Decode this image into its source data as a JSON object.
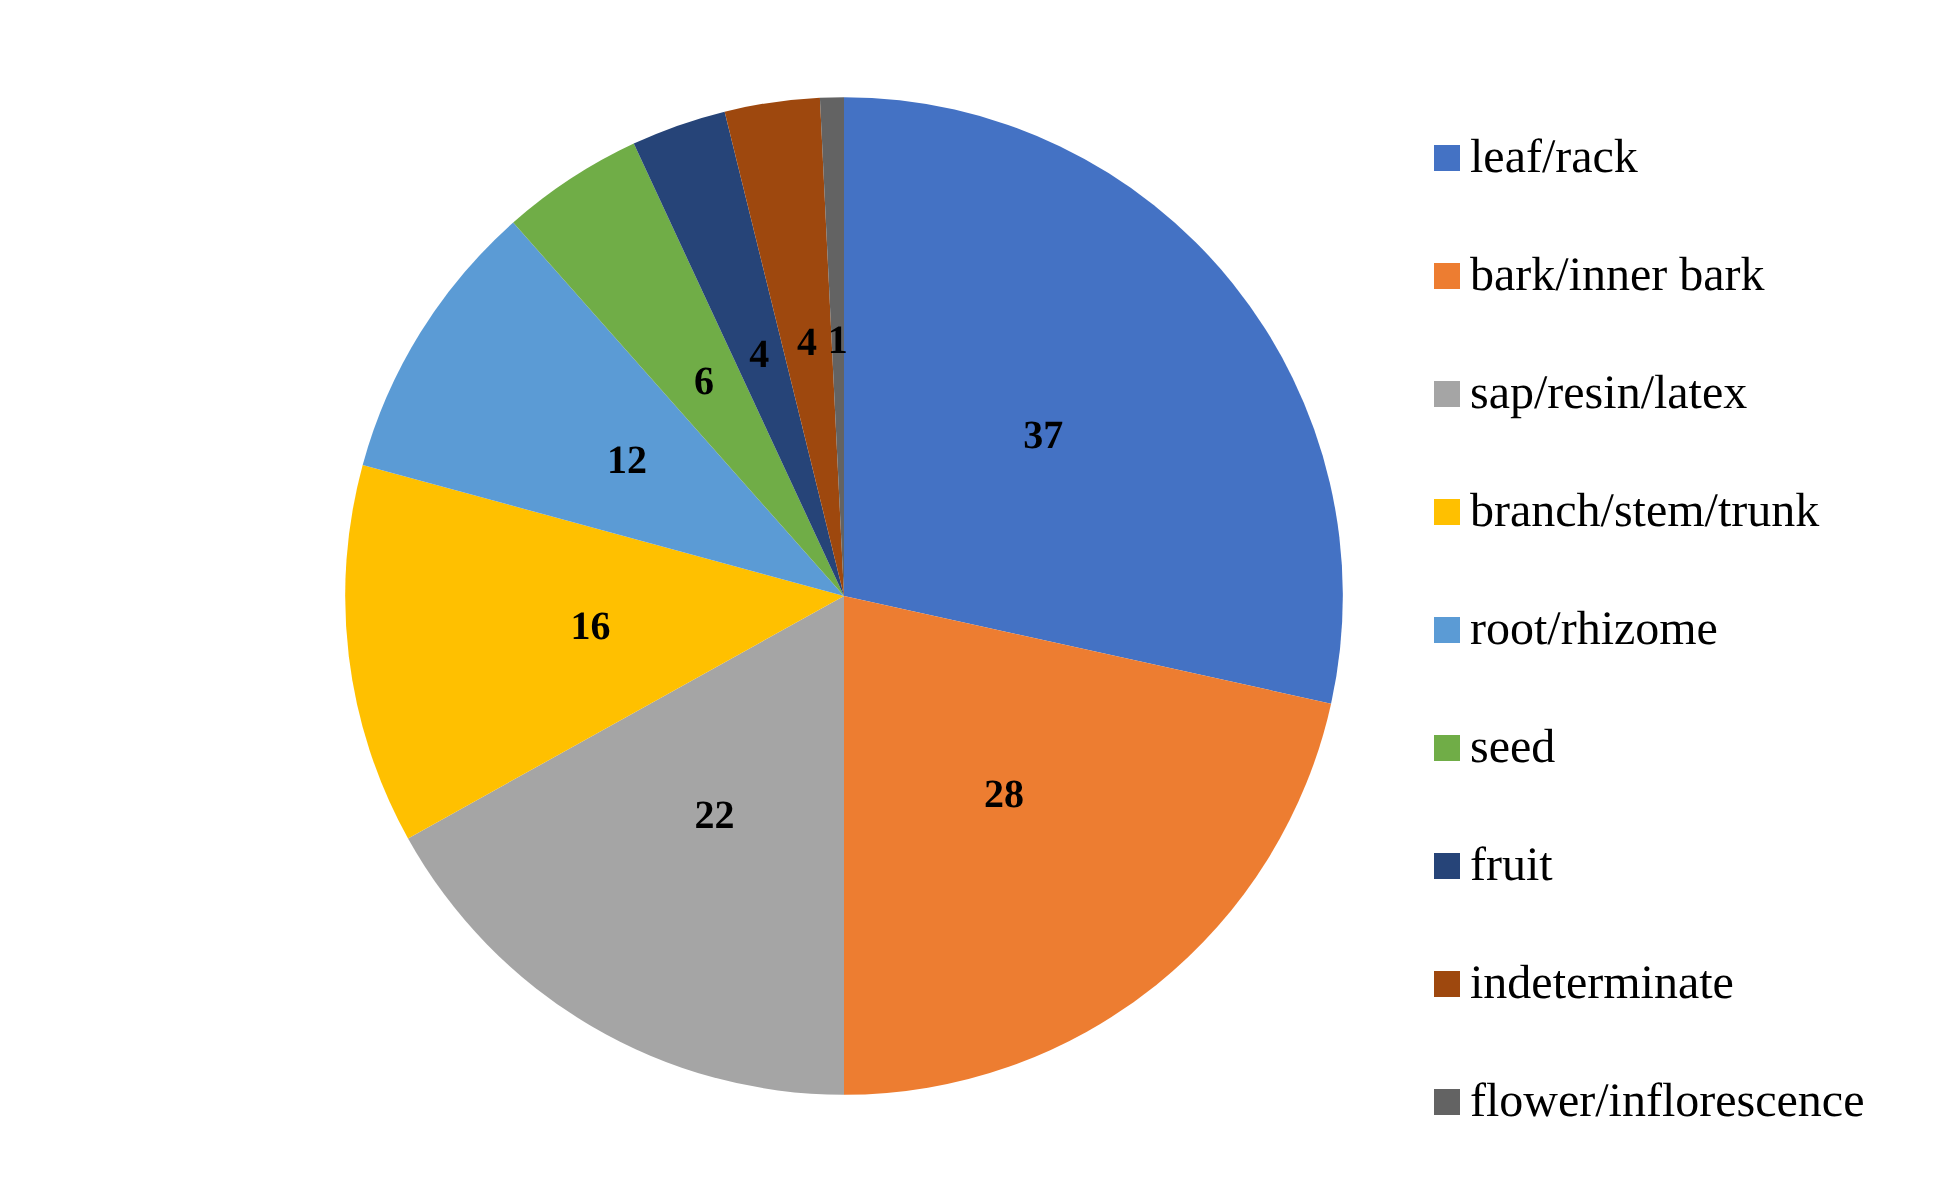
{
  "chart_data": {
    "type": "pie",
    "categories": [
      "leaf/rack",
      "bark/inner bark",
      "sap/resin/latex",
      "branch/stem/trunk",
      "root/rhizome",
      "seed",
      "fruit",
      "indeterminate",
      "flower/inflorescence"
    ],
    "values": [
      37,
      28,
      22,
      16,
      12,
      6,
      4,
      4,
      1
    ],
    "colors": [
      "#4472c4",
      "#ed7d31",
      "#a5a5a5",
      "#ffc000",
      "#5b9bd5",
      "#70ad47",
      "#264478",
      "#9e480e",
      "#636363"
    ],
    "data_labels": true,
    "legend": "right"
  }
}
